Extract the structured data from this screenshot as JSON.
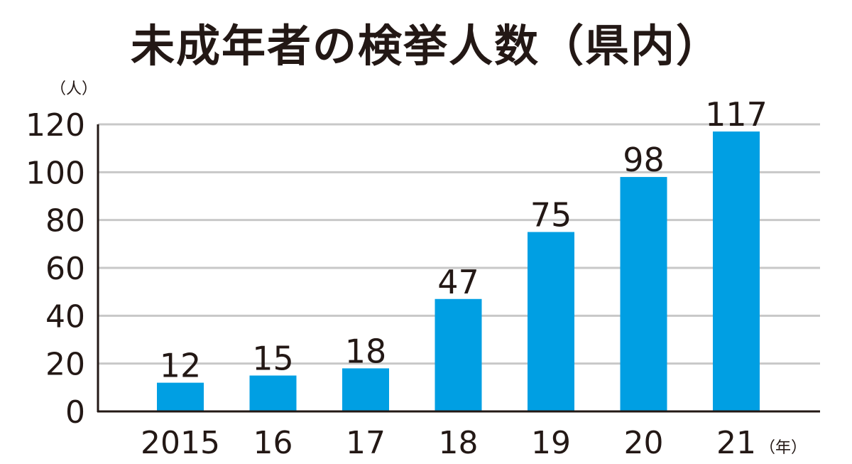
{
  "chart_data": {
    "type": "bar",
    "title": "未成年者の検挙人数（県内）",
    "ylabel": "（人）",
    "xlabel": "（年）",
    "categories": [
      "2015",
      "16",
      "17",
      "18",
      "19",
      "20",
      "21"
    ],
    "values": [
      12,
      15,
      18,
      47,
      75,
      98,
      117
    ],
    "ylim": [
      0,
      120
    ],
    "yticks": [
      0,
      20,
      40,
      60,
      80,
      100,
      120
    ],
    "grid": true,
    "bar_color": "#009FE3",
    "grid_color": "#C8C8C8",
    "axis_color": "#231815"
  }
}
